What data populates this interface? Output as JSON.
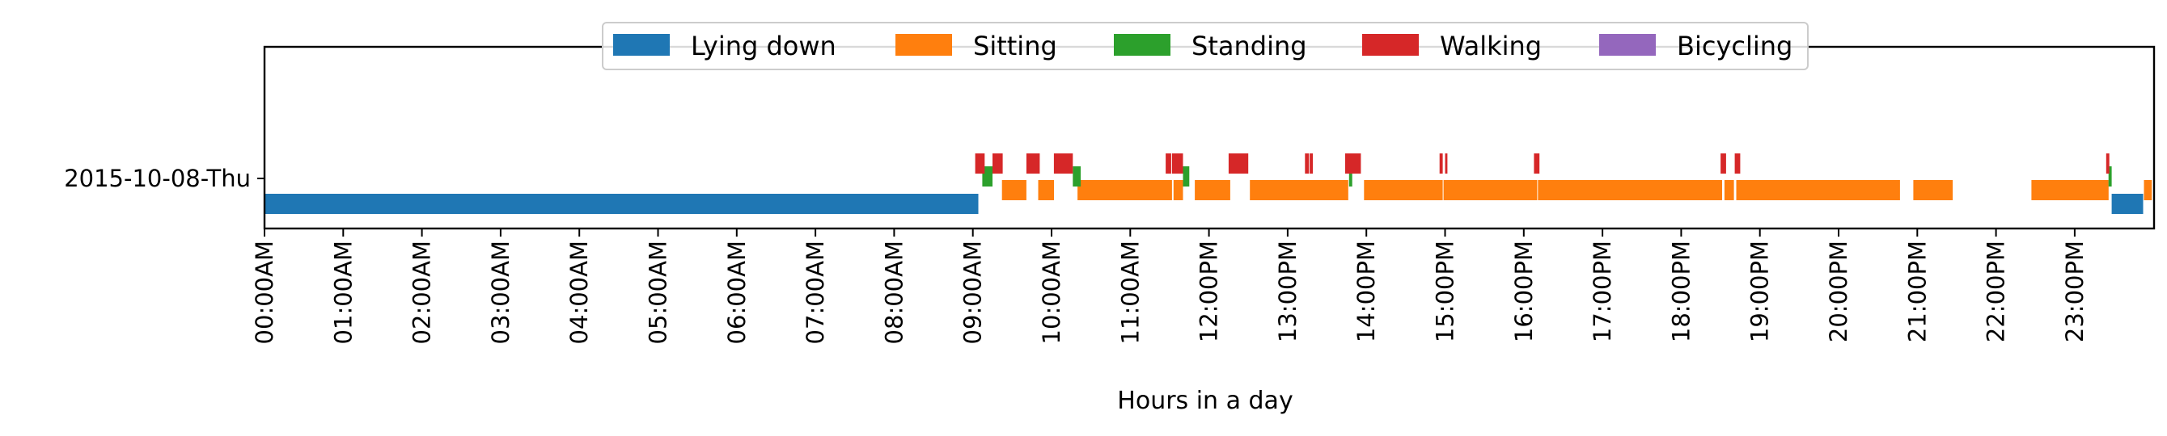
{
  "chart_data": {
    "type": "timeline",
    "title": "",
    "xlabel": "Hours in a day",
    "ylabel": "",
    "xlim_hours": [
      0,
      23.75
    ],
    "grid": false,
    "legend_placement": "top-center",
    "x_ticks": [
      {
        "hour": 0,
        "label": "00:00AM"
      },
      {
        "hour": 1,
        "label": "01:00AM"
      },
      {
        "hour": 2,
        "label": "02:00AM"
      },
      {
        "hour": 3,
        "label": "03:00AM"
      },
      {
        "hour": 4,
        "label": "04:00AM"
      },
      {
        "hour": 5,
        "label": "05:00AM"
      },
      {
        "hour": 6,
        "label": "06:00AM"
      },
      {
        "hour": 7,
        "label": "07:00AM"
      },
      {
        "hour": 8,
        "label": "08:00AM"
      },
      {
        "hour": 9,
        "label": "09:00AM"
      },
      {
        "hour": 10,
        "label": "10:00AM"
      },
      {
        "hour": 11,
        "label": "11:00AM"
      },
      {
        "hour": 12,
        "label": "12:00PM"
      },
      {
        "hour": 13,
        "label": "13:00PM"
      },
      {
        "hour": 14,
        "label": "14:00PM"
      },
      {
        "hour": 15,
        "label": "15:00PM"
      },
      {
        "hour": 16,
        "label": "16:00PM"
      },
      {
        "hour": 17,
        "label": "17:00PM"
      },
      {
        "hour": 18,
        "label": "18:00PM"
      },
      {
        "hour": 19,
        "label": "19:00PM"
      },
      {
        "hour": 20,
        "label": "20:00PM"
      },
      {
        "hour": 21,
        "label": "21:00PM"
      },
      {
        "hour": 22,
        "label": "22:00PM"
      },
      {
        "hour": 23,
        "label": "23:00PM"
      }
    ],
    "day_label": "2015-10-08-Thu",
    "series": [
      {
        "name": "Lying down",
        "color": "#1f77b4",
        "segments": [
          [
            0.0,
            9.07
          ],
          [
            23.47,
            23.87
          ]
        ]
      },
      {
        "name": "Sitting",
        "color": "#ff7f0e",
        "segments": [
          [
            9.37,
            9.68
          ],
          [
            9.83,
            10.03
          ],
          [
            10.33,
            11.53
          ],
          [
            11.55,
            11.67
          ],
          [
            11.82,
            12.27
          ],
          [
            12.52,
            13.77
          ],
          [
            13.97,
            14.97
          ],
          [
            14.98,
            16.17
          ],
          [
            16.18,
            18.52
          ],
          [
            18.55,
            18.67
          ],
          [
            18.7,
            20.78
          ],
          [
            20.95,
            21.45
          ],
          [
            22.45,
            23.43
          ],
          [
            23.88,
            23.98
          ]
        ]
      },
      {
        "name": "Standing",
        "color": "#2ca02c",
        "segments": [
          [
            9.12,
            9.25
          ],
          [
            10.27,
            10.37
          ],
          [
            11.67,
            11.75
          ],
          [
            13.78,
            13.82
          ],
          [
            23.43,
            23.47
          ]
        ]
      },
      {
        "name": "Walking",
        "color": "#d62728",
        "segments": [
          [
            9.03,
            9.15
          ],
          [
            9.25,
            9.38
          ],
          [
            9.68,
            9.85
          ],
          [
            10.03,
            10.27
          ],
          [
            11.45,
            11.52
          ],
          [
            11.53,
            11.67
          ],
          [
            12.25,
            12.5
          ],
          [
            13.22,
            13.27
          ],
          [
            13.28,
            13.32
          ],
          [
            13.73,
            13.93
          ],
          [
            14.93,
            14.97
          ],
          [
            15.0,
            15.03
          ],
          [
            16.13,
            16.2
          ],
          [
            18.5,
            18.57
          ],
          [
            18.68,
            18.75
          ],
          [
            23.4,
            23.44
          ]
        ]
      },
      {
        "name": "Bicycling",
        "color": "#9467bd",
        "segments": []
      }
    ]
  }
}
